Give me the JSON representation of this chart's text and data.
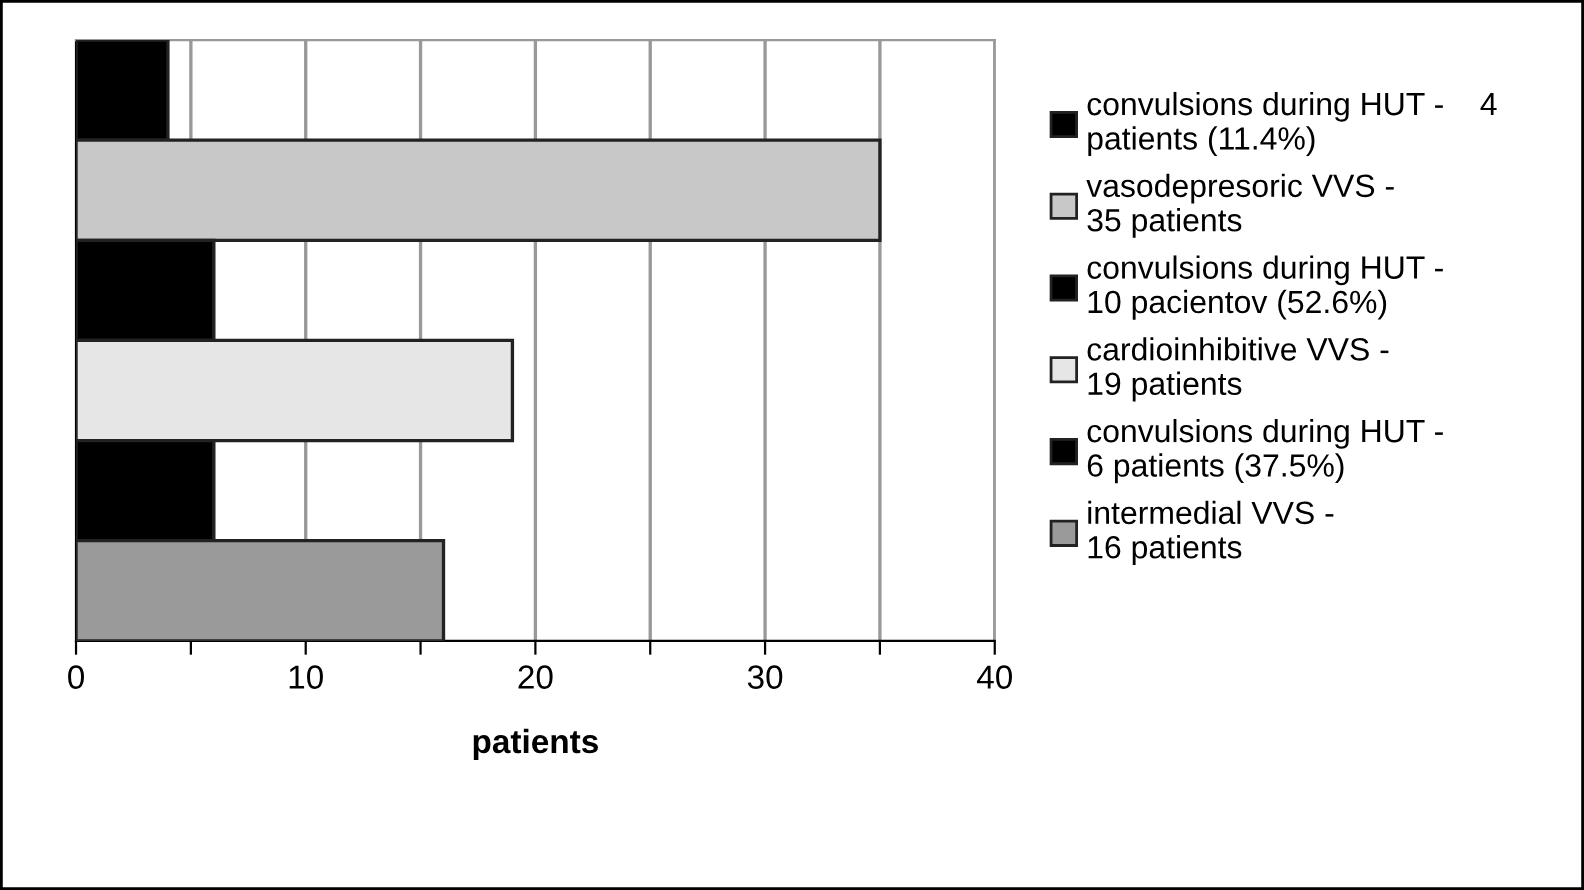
{
  "chart_data": {
    "type": "bar",
    "orientation": "horizontal",
    "xlabel": "patients",
    "categories": [
      null,
      null,
      null,
      null,
      null,
      null
    ],
    "series": [
      {
        "name": "convulsions during HUT -    4\npatients (11.4%)",
        "color": "#000000",
        "values": [
          4,
          null,
          null,
          null,
          null,
          null
        ]
      },
      {
        "name": "vasodepresoric VVS -\n35 patients",
        "color": "#c8c8c8",
        "values": [
          null,
          35,
          null,
          null,
          null,
          null
        ]
      },
      {
        "name": "convulsions during HUT -\n10 pacientov (52.6%)",
        "color": "#000000",
        "values": [
          null,
          null,
          6,
          null,
          null,
          null
        ]
      },
      {
        "name": "cardioinhibitive VVS -\n19 patients",
        "color": "#e6e6e6",
        "values": [
          null,
          null,
          null,
          19,
          null,
          null
        ]
      },
      {
        "name": "convulsions during HUT -\n6 patients (37.5%)",
        "color": "#000000",
        "values": [
          null,
          null,
          null,
          null,
          6,
          null
        ]
      },
      {
        "name": "intermedial VVS -\n16 patients",
        "color": "#9a9a9a",
        "values": [
          null,
          null,
          null,
          null,
          null,
          16
        ]
      }
    ],
    "xlim": [
      0,
      40
    ],
    "xticks": [
      0,
      {
        "value": 5,
        "label": null
      },
      10,
      {
        "value": 15,
        "label": null
      },
      20,
      {
        "value": 25,
        "label": null
      },
      30,
      {
        "value": 35,
        "label": null
      },
      40
    ],
    "grid": "x",
    "legend": "right"
  }
}
